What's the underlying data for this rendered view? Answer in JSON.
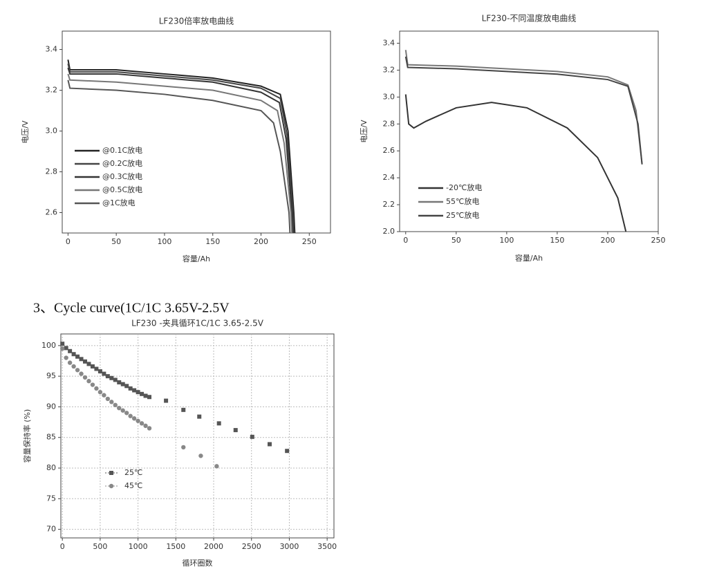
{
  "heading": "3、Cycle curve(1C/1C 3.65V-2.5V",
  "chart_data": [
    {
      "type": "line",
      "title": "LF230倍率放电曲线",
      "x_label": "容量/Ah",
      "y_label": "电压/V",
      "xlim": [
        -6,
        272
      ],
      "ylim": [
        2.5,
        3.49
      ],
      "xticks": [
        0,
        50,
        100,
        150,
        200,
        250
      ],
      "yticks": [
        2.6,
        2.8,
        {
          "value": 3,
          "label": "3.0"
        },
        3.2,
        3.4
      ],
      "grid": false,
      "series": [
        {
          "name": "@0.1C放电",
          "color": "#222",
          "x": [
            0,
            2,
            50,
            100,
            150,
            200,
            220,
            228,
            234,
            235
          ],
          "values": [
            3.35,
            3.3,
            3.3,
            3.28,
            3.26,
            3.22,
            3.18,
            3.0,
            2.6,
            2.5
          ]
        },
        {
          "name": "@0.2C放电",
          "color": "#444",
          "x": [
            0,
            2,
            50,
            100,
            150,
            200,
            220,
            227,
            233,
            234
          ],
          "values": [
            3.33,
            3.29,
            3.29,
            3.27,
            3.25,
            3.21,
            3.16,
            2.98,
            2.6,
            2.5
          ]
        },
        {
          "name": "@0.3C放电",
          "color": "#333",
          "x": [
            0,
            2,
            50,
            100,
            150,
            200,
            219,
            226,
            232,
            233
          ],
          "values": [
            3.31,
            3.28,
            3.28,
            3.26,
            3.24,
            3.19,
            3.14,
            2.96,
            2.6,
            2.5
          ]
        },
        {
          "name": "@0.5C放电",
          "color": "#777",
          "x": [
            0,
            2,
            50,
            100,
            150,
            200,
            217,
            224,
            231,
            232
          ],
          "values": [
            3.28,
            3.25,
            3.24,
            3.22,
            3.2,
            3.15,
            3.1,
            2.94,
            2.6,
            2.5
          ]
        },
        {
          "name": "@1C放电",
          "color": "#555",
          "x": [
            0,
            2,
            50,
            100,
            150,
            200,
            213,
            220,
            229,
            230
          ],
          "values": [
            3.25,
            3.21,
            3.2,
            3.18,
            3.15,
            3.1,
            3.04,
            2.9,
            2.6,
            2.5
          ]
        }
      ]
    },
    {
      "type": "line",
      "title": "LF230-不同温度放电曲线",
      "x_label": "容量/Ah",
      "y_label": "电压/V",
      "xlim": [
        -6,
        250
      ],
      "ylim": [
        2,
        3.49
      ],
      "xticks": [
        0,
        50,
        100,
        150,
        200,
        250
      ],
      "yticks": [
        {
          "value": 2,
          "label": "2.0"
        },
        2.2,
        2.4,
        2.6,
        2.8,
        {
          "value": 3,
          "label": "3.0"
        },
        3.2,
        3.4
      ],
      "grid": false,
      "series": [
        {
          "name": "-20℃放电",
          "color": "#333",
          "x": [
            0,
            3,
            8,
            20,
            50,
            85,
            120,
            160,
            190,
            210,
            218
          ],
          "values": [
            3.02,
            2.8,
            2.77,
            2.82,
            2.92,
            2.96,
            2.92,
            2.77,
            2.55,
            2.25,
            2
          ]
        },
        {
          "name": "55℃放电",
          "color": "#777",
          "x": [
            0,
            2,
            50,
            100,
            150,
            200,
            220,
            228,
            234
          ],
          "values": [
            3.35,
            3.24,
            3.23,
            3.21,
            3.19,
            3.15,
            3.09,
            2.9,
            2.5
          ]
        },
        {
          "name": "25℃放电",
          "color": "#444",
          "x": [
            0,
            2,
            50,
            100,
            150,
            200,
            220,
            230,
            234
          ],
          "values": [
            3.3,
            3.22,
            3.21,
            3.19,
            3.17,
            3.13,
            3.08,
            2.8,
            2.5
          ]
        }
      ]
    },
    {
      "type": "scatter",
      "title": "LF230 -夹具循环1C/1C 3.65-2.5V",
      "x_label": "循环圈数",
      "y_label": "容量保持率 (%)",
      "xlim": [
        -20,
        3590
      ],
      "ylim": [
        68.6,
        101.9
      ],
      "xticks": [
        0,
        500,
        1000,
        1500,
        2000,
        2500,
        3000,
        3500
      ],
      "yticks": [
        70,
        75,
        80,
        85,
        90,
        95,
        100
      ],
      "grid": true,
      "series": [
        {
          "name": "25℃",
          "color": "#555",
          "marker": "square",
          "x": [
            0,
            50,
            100,
            150,
            200,
            250,
            300,
            350,
            400,
            450,
            500,
            550,
            600,
            650,
            700,
            750,
            800,
            850,
            900,
            950,
            1000,
            1050,
            1100,
            1150,
            1370,
            1600,
            1810,
            2070,
            2290,
            2510,
            2740,
            2970
          ],
          "values": [
            100.3,
            99.6,
            99.1,
            98.6,
            98.2,
            97.8,
            97.4,
            97,
            96.6,
            96.2,
            95.8,
            95.4,
            95,
            94.7,
            94.4,
            94,
            93.7,
            93.4,
            93,
            92.7,
            92.4,
            92.1,
            91.8,
            91.6,
            91,
            89.5,
            88.4,
            87.3,
            86.2,
            85.1,
            83.9,
            82.8
          ]
        },
        {
          "name": "45℃",
          "color": "#888",
          "marker": "circle",
          "x": [
            0,
            50,
            100,
            150,
            200,
            250,
            300,
            350,
            400,
            450,
            500,
            550,
            600,
            650,
            700,
            750,
            800,
            850,
            900,
            950,
            1000,
            1050,
            1100,
            1150,
            1600,
            1830,
            2040
          ],
          "values": [
            99.5,
            98,
            97.2,
            96.6,
            96,
            95.4,
            94.8,
            94.2,
            93.6,
            93,
            92.4,
            91.9,
            91.3,
            90.8,
            90.3,
            89.8,
            89.4,
            89,
            88.5,
            88.1,
            87.7,
            87.3,
            86.9,
            86.5,
            83.4,
            82,
            80.3
          ]
        }
      ]
    }
  ]
}
